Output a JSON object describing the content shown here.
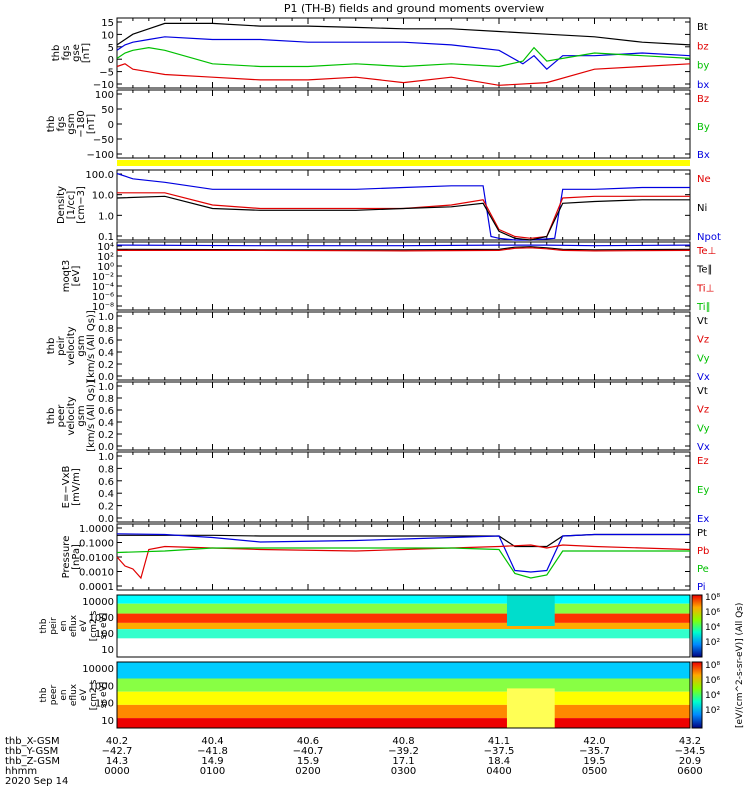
{
  "title": "P1 (TH-B) fields and ground moments overview",
  "chart_data": {
    "type": "line",
    "panels": [
      {
        "ylabel": [
          "thb",
          "fgs",
          "gse",
          "[nT]"
        ],
        "yticks": [
          "15",
          "10",
          "5",
          "0",
          "−5",
          "−10"
        ],
        "ylim": [
          -10,
          16
        ],
        "legend": [
          {
            "label": "Bt",
            "color": "#000000"
          },
          {
            "label": "bz",
            "color": "#e00000"
          },
          {
            "label": "by",
            "color": "#00c000"
          },
          {
            "label": "bx",
            "color": "#0000e0"
          }
        ],
        "series": [
          {
            "color": "#000000",
            "x": [
              0,
              5,
              10,
              20,
              30,
              60,
              90,
              120,
              150,
              180,
              210,
              240,
              270,
              300,
              330,
              360
            ],
            "y": [
              6,
              8,
              10,
              12,
              14,
              14,
              13,
              13,
              12.5,
              12,
              12,
              11,
              10,
              9,
              7,
              6
            ]
          },
          {
            "color": "#0000e0",
            "x": [
              0,
              5,
              10,
              20,
              30,
              60,
              90,
              120,
              150,
              180,
              210,
              240,
              255,
              262,
              270,
              280,
              300,
              330,
              360
            ],
            "y": [
              4,
              6,
              7,
              8,
              9,
              8,
              8,
              7,
              7,
              7,
              6,
              4,
              -1,
              2,
              -3,
              2,
              2,
              3,
              2
            ]
          },
          {
            "color": "#00c000",
            "x": [
              0,
              5,
              10,
              20,
              30,
              60,
              90,
              120,
              150,
              180,
              210,
              240,
              255,
              262,
              270,
              280,
              300,
              330,
              360
            ],
            "y": [
              1,
              3,
              4,
              5,
              4,
              -1,
              -2,
              -2,
              -1,
              -2,
              -1,
              -2,
              0,
              5,
              0,
              1,
              3,
              2,
              1
            ]
          },
          {
            "color": "#e00000",
            "x": [
              0,
              5,
              10,
              20,
              30,
              60,
              90,
              120,
              150,
              180,
              210,
              240,
              270,
              300,
              330,
              360
            ],
            "y": [
              -2,
              -1,
              -3,
              -4,
              -5,
              -6,
              -7,
              -7,
              -6,
              -8,
              -6,
              -9,
              -8,
              -3,
              -2,
              -1
            ]
          }
        ]
      },
      {
        "ylabel": [
          "thb",
          "fgs",
          "gsm",
          "−180",
          "[nT]"
        ],
        "yticks": [
          "100",
          "50",
          "0",
          "−50",
          "−100"
        ],
        "ylim": [
          -130,
          120
        ],
        "legend": [
          {
            "label": "Bz",
            "color": "#e00000"
          },
          {
            "label": "By",
            "color": "#00c000"
          },
          {
            "label": "Bx",
            "color": "#0000e0"
          }
        ],
        "series": []
      },
      {
        "ylabel": [
          "Density",
          "[1/cc]",
          "[cm−3]"
        ],
        "yticks": [
          "100.0",
          "10.0",
          "1.0",
          "0.1"
        ],
        "ylim": [
          -1.5,
          2.5
        ],
        "log": true,
        "legend": [
          {
            "label": "Ne",
            "color": "#e00000"
          },
          {
            "label": "Ni",
            "color": "#000000"
          },
          {
            "label": "Npot",
            "color": "#0000e0"
          }
        ],
        "series": [
          {
            "color": "#0000e0",
            "x": [
              0,
              10,
              30,
              60,
              90,
              150,
              180,
              210,
              230,
              235,
              240,
              250,
              260,
              275,
              280,
              300,
              330,
              360
            ],
            "y": [
              2.3,
              2.0,
              1.8,
              1.4,
              1.4,
              1.4,
              1.5,
              1.6,
              1.6,
              -1.3,
              -1.4,
              -1.5,
              -1.5,
              -1.4,
              1.4,
              1.4,
              1.5,
              1.5
            ]
          },
          {
            "color": "#e00000",
            "x": [
              0,
              30,
              60,
              90,
              150,
              180,
              210,
              230,
              240,
              250,
              260,
              270,
              280,
              300,
              330,
              360
            ],
            "y": [
              1.2,
              1.2,
              0.5,
              0.3,
              0.3,
              0.3,
              0.5,
              0.8,
              -0.9,
              -1.3,
              -1.4,
              -1.3,
              0.9,
              1.0,
              1.0,
              1.0
            ]
          },
          {
            "color": "#000000",
            "x": [
              0,
              30,
              60,
              90,
              150,
              180,
              210,
              230,
              240,
              250,
              260,
              270,
              280,
              300,
              330,
              360
            ],
            "y": [
              0.9,
              1.0,
              0.3,
              0.2,
              0.2,
              0.3,
              0.4,
              0.6,
              -1.0,
              -1.4,
              -1.5,
              -1.3,
              0.6,
              0.7,
              0.8,
              0.8
            ]
          }
        ]
      },
      {
        "ylabel": [
          "moqt3",
          "[eV]"
        ],
        "yticks": [
          "10⁴",
          "10²",
          "10⁰",
          "10⁻²",
          "10⁻⁴",
          "10⁻⁶",
          "10⁻⁸"
        ],
        "ylim": [
          -9,
          4
        ],
        "log": true,
        "legend": [
          {
            "label": "Te⊥",
            "color": "#e00000"
          },
          {
            "label": "Te∥",
            "color": "#000000"
          },
          {
            "label": "Ti⊥",
            "color": "#e00000"
          },
          {
            "label": "Ti∥",
            "color": "#00c000"
          }
        ],
        "series": [
          {
            "color": "#0000e0",
            "x": [
              0,
              90,
              180,
              240,
              270,
              300,
              360
            ],
            "y": [
              3.4,
              3.3,
              3.3,
              3.4,
              3.4,
              3.3,
              3.4
            ]
          },
          {
            "color": "#000000",
            "x": [
              0,
              90,
              180,
              240,
              250,
              260,
              270,
              280,
              300,
              360
            ],
            "y": [
              2.6,
              2.5,
              2.5,
              2.6,
              3.0,
              3.1,
              2.9,
              2.6,
              2.5,
              2.6
            ]
          },
          {
            "color": "#e00000",
            "x": [
              0,
              90,
              180,
              240,
              250,
              260,
              270,
              280,
              300,
              360
            ],
            "y": [
              2.4,
              2.4,
              2.3,
              2.4,
              2.8,
              2.9,
              2.7,
              2.4,
              2.3,
              2.4
            ]
          }
        ]
      },
      {
        "ylabel": [
          "thb",
          "peir",
          "velocity",
          "gsm",
          "[km/s (All Qs)]"
        ],
        "yticks": [
          "1.0",
          "0.8",
          "0.6",
          "0.4",
          "0.2",
          "0.0"
        ],
        "ylim": [
          0,
          1
        ],
        "legend": [
          {
            "label": "Vt",
            "color": "#000000"
          },
          {
            "label": "Vz",
            "color": "#e00000"
          },
          {
            "label": "Vy",
            "color": "#00c000"
          },
          {
            "label": "Vx",
            "color": "#0000e0"
          }
        ],
        "series": []
      },
      {
        "ylabel": [
          "thb",
          "peer",
          "velocity",
          "gsm",
          "[km/s (All Qs)]"
        ],
        "yticks": [
          "1.0",
          "0.8",
          "0.6",
          "0.4",
          "0.2",
          "0.0"
        ],
        "ylim": [
          0,
          1
        ],
        "legend": [
          {
            "label": "Vt",
            "color": "#000000"
          },
          {
            "label": "Vz",
            "color": "#e00000"
          },
          {
            "label": "Vy",
            "color": "#00c000"
          },
          {
            "label": "Vx",
            "color": "#0000e0"
          }
        ],
        "series": []
      },
      {
        "ylabel": [
          "E=−VxB",
          "[mV/m]"
        ],
        "yticks": [
          "1.0",
          "0.8",
          "0.6",
          "0.4",
          "0.2",
          "0.0"
        ],
        "ylim": [
          0,
          1
        ],
        "legend": [
          {
            "label": "Ez",
            "color": "#e00000"
          },
          {
            "label": "Ey",
            "color": "#00c000"
          },
          {
            "label": "Ex",
            "color": "#0000e0"
          }
        ],
        "series": []
      },
      {
        "ylabel": [
          "Pressure",
          "[nPa]"
        ],
        "yticks": [
          "1.0000",
          "0.1000",
          "0.0100",
          "0.0010",
          "0.0001"
        ],
        "ylim": [
          -4.2,
          0.2
        ],
        "log": true,
        "legend": [
          {
            "label": "Pt",
            "color": "#000000"
          },
          {
            "label": "Pb",
            "color": "#e00000"
          },
          {
            "label": "Pe",
            "color": "#00c000"
          },
          {
            "label": "Pi",
            "color": "#0000e0"
          }
        ],
        "series": [
          {
            "color": "#000000",
            "x": [
              0,
              30,
              60,
              90,
              150,
              180,
              210,
              240,
              250,
              270,
              280,
              300,
              330,
              360
            ],
            "y": [
              -0.55,
              -0.55,
              -0.55,
              -0.6,
              -0.6,
              -0.6,
              -0.6,
              -0.6,
              -1.3,
              -1.3,
              -0.6,
              -0.5,
              -0.5,
              -0.5
            ]
          },
          {
            "color": "#0000e0",
            "x": [
              0,
              30,
              60,
              90,
              150,
              180,
              210,
              240,
              250,
              260,
              270,
              280,
              300,
              330,
              360
            ],
            "y": [
              -0.45,
              -0.5,
              -0.7,
              -1.0,
              -0.9,
              -0.8,
              -0.7,
              -0.6,
              -2.9,
              -3.0,
              -2.9,
              -0.6,
              -0.5,
              -0.5,
              -0.5
            ]
          },
          {
            "color": "#e00000",
            "x": [
              0,
              5,
              10,
              15,
              20,
              30,
              60,
              90,
              150,
              180,
              210,
              240,
              260,
              270,
              280,
              300,
              330,
              360
            ],
            "y": [
              -2.0,
              -2.6,
              -2.8,
              -3.4,
              -1.5,
              -1.3,
              -1.4,
              -1.5,
              -1.6,
              -1.5,
              -1.4,
              -1.3,
              -1.2,
              -1.4,
              -1.2,
              -1.3,
              -1.4,
              -1.5
            ]
          },
          {
            "color": "#00c000",
            "x": [
              0,
              30,
              60,
              90,
              150,
              180,
              210,
              240,
              250,
              260,
              270,
              280,
              300,
              330,
              360
            ],
            "y": [
              -1.7,
              -1.6,
              -1.4,
              -1.4,
              -1.4,
              -1.4,
              -1.4,
              -1.5,
              -3.1,
              -3.4,
              -3.2,
              -1.6,
              -1.6,
              -1.6,
              -1.6
            ]
          }
        ]
      }
    ],
    "spectrograms": [
      {
        "ylabel": [
          "thb",
          "peir",
          "en",
          "eflux",
          "eV",
          "[cm2 s",
          "sr eV]"
        ],
        "yticks": [
          "10000",
          "1000",
          "100",
          "10"
        ]
      },
      {
        "ylabel": [
          "thb",
          "peer",
          "en",
          "eflux",
          "eV",
          "[cm2 s",
          "sr eV]"
        ],
        "yticks": [
          "10000",
          "1000",
          "100",
          "10"
        ]
      }
    ],
    "colorbar": {
      "ticks": [
        "10⁸",
        "10⁶",
        "10⁴",
        "10²"
      ],
      "label": "[eV/(cm^2-s-sr-eV)] (All Qs)"
    },
    "xaxis": {
      "rows": [
        {
          "label": "thb_X-GSM",
          "values": [
            "40.2",
            "40.4",
            "40.6",
            "40.8",
            "41.1",
            "42.0",
            "43.2"
          ]
        },
        {
          "label": "thb_Y-GSM",
          "values": [
            "−42.7",
            "−41.8",
            "−40.7",
            "−39.2",
            "−37.5",
            "−35.7",
            "−34.5"
          ]
        },
        {
          "label": "thb_Z-GSM",
          "values": [
            "14.3",
            "14.9",
            "15.9",
            "17.1",
            "18.4",
            "19.5",
            "20.9"
          ]
        },
        {
          "label": "hhmm",
          "values": [
            "0000",
            "0100",
            "0200",
            "0300",
            "0400",
            "0500",
            "0600"
          ]
        }
      ],
      "date": "2020 Sep 14"
    }
  }
}
